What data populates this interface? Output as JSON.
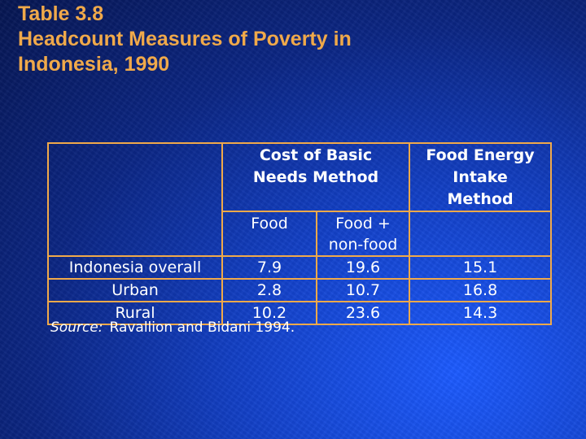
{
  "slide": {
    "title_line1": "Table 3.8",
    "title_line2": "Headcount Measures of Poverty in",
    "title_line3": "Indonesia, 1990"
  },
  "table": {
    "header_cbn_line1": "Cost of Basic",
    "header_cbn_line2": "Needs Method",
    "header_fei_line1": "Food Energy",
    "header_fei_line2": "Intake",
    "header_fei_line3": "Method",
    "sub_food": "Food",
    "sub_food_nonfood_line1": "Food +",
    "sub_food_nonfood_line2": "non-food",
    "rows": [
      {
        "label": "Indonesia overall",
        "food": "7.9",
        "food_nonfood": "19.6",
        "fei": "15.1"
      },
      {
        "label": "Urban",
        "food": "2.8",
        "food_nonfood": "10.7",
        "fei": "16.8"
      },
      {
        "label": "Rural",
        "food": "10.2",
        "food_nonfood": "23.6",
        "fei": "14.3"
      }
    ]
  },
  "source": {
    "label": "Source:",
    "text": "Ravallion and Bidani 1994."
  },
  "colors": {
    "title": "#f0a94a",
    "table_border": "#f0a94a",
    "text": "#ffffff",
    "background": "#0b2684"
  }
}
